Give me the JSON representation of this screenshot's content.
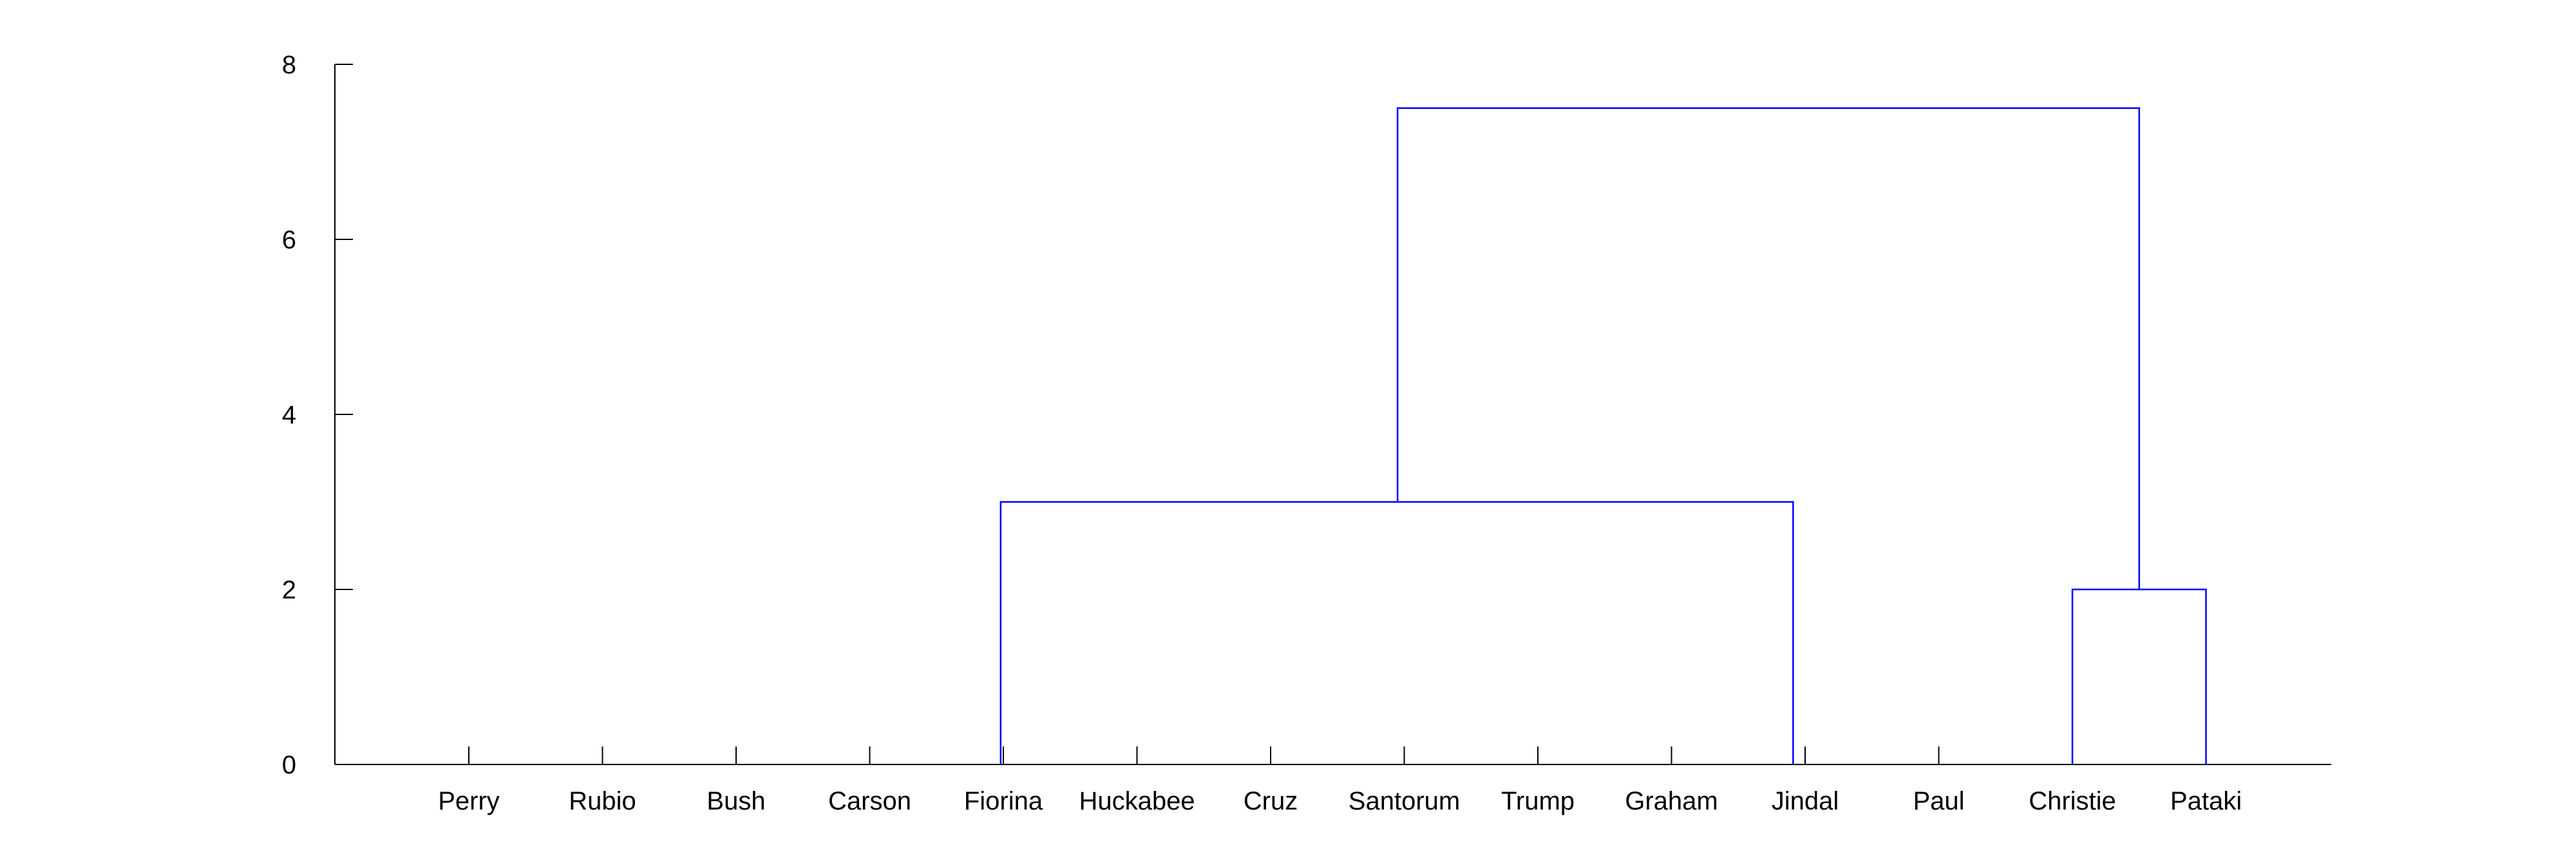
{
  "chart_data": {
    "type": "dendrogram",
    "title": "",
    "xlabel": "",
    "ylabel": "",
    "ylim": [
      0,
      8
    ],
    "yticks": [
      0,
      2,
      4,
      6,
      8
    ],
    "leaves": [
      "Perry",
      "Rubio",
      "Bush",
      "Carson",
      "Fiorina",
      "Huckabee",
      "Cruz",
      "Santorum",
      "Trump",
      "Graham",
      "Jindal",
      "Paul",
      "Christie",
      "Pataki"
    ],
    "links": [
      {
        "left_leaf_index": 3.98,
        "right_leaf_index": 9.91,
        "height": 3
      },
      {
        "left_leaf_index": 12,
        "right_leaf_index": 13,
        "height": 2
      },
      {
        "left_leaf_index": 6.95,
        "right_leaf_index": 12.5,
        "height": 7.5
      }
    ],
    "grid": false,
    "line_color": "#0000ff"
  }
}
